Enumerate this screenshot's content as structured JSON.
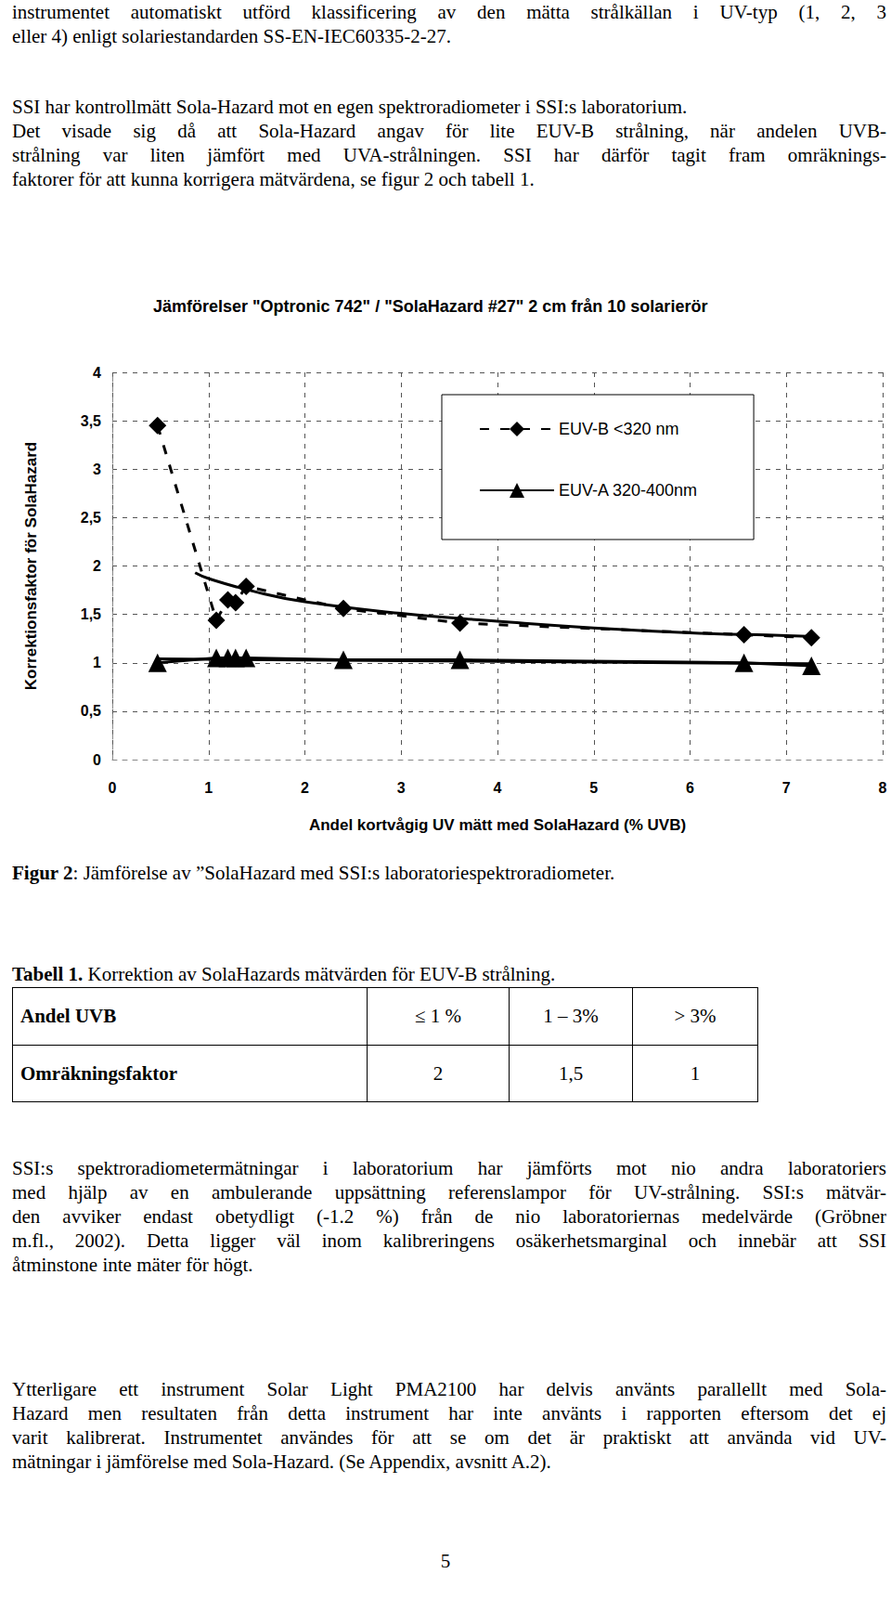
{
  "text_top": [
    [
      "instrumentet automatiskt utförd klassificering av den mätta strålkällan i UV-typ (1, 2, 3",
      "eller 4) enligt solariestandarden SS-EN-IEC60335-2-27."
    ],
    [
      "SSI har kontrollmätt Sola-Hazard mot en egen spektroradiometer i SSI:s laboratorium."
    ],
    [
      "Det visade sig då att Sola-Hazard angav för lite EUV-B strålning, när andelen UVB-",
      "strålning var liten jämfört med UVA-strålningen. SSI har därför tagit fram omräknings-",
      "faktorer för att kunna korrigera mätvärdena, se figur 2 och tabell 1."
    ]
  ],
  "chart_data": {
    "type": "line",
    "title": "Jämförelser \"Optronic 742\" / \"SolaHazard #27\" 2 cm från 10 solarierör",
    "x_label": "Andel kortvågig UV mätt med SolaHazard (% UVB)",
    "y_label": "Korrektionsfaktor för SolaHazard",
    "xlim": [
      0,
      8
    ],
    "xticks": [
      0,
      1,
      2,
      3,
      4,
      5,
      6,
      7,
      8
    ],
    "ylim": [
      0,
      4
    ],
    "yticks": [
      0,
      {
        "value": 0.5,
        "label": "0,5"
      },
      1,
      {
        "value": 1.5,
        "label": "1,5"
      },
      2,
      {
        "value": 2.5,
        "label": "2,5"
      },
      3,
      {
        "value": 3.5,
        "label": "3,5"
      },
      4
    ],
    "grid": true,
    "legend": "upper right",
    "series": [
      {
        "name": "EUV-B <320 nm",
        "color": "#000000",
        "marker": "diamond",
        "line_style": "dashed",
        "x": [
          0.47,
          1.08,
          1.2,
          1.28,
          1.39,
          2.4,
          3.61,
          6.56,
          7.26
        ],
        "values": [
          3.45,
          1.44,
          1.65,
          1.62,
          1.79,
          1.56,
          1.41,
          1.29,
          1.26
        ],
        "trend": {
          "line_style": "solid",
          "x": [
            0.86,
            1,
            1.5,
            2,
            3,
            4,
            5,
            6,
            7,
            7.3
          ],
          "values": [
            1.93,
            1.87,
            1.73,
            1.63,
            1.51,
            1.43,
            1.36,
            1.31,
            1.28,
            1.27
          ]
        }
      },
      {
        "name": "EUV-A 320-400nm",
        "color": "#000000",
        "marker": "triangle",
        "line_style": "solid",
        "x": [
          0.47,
          1.08,
          1.2,
          1.28,
          1.39,
          2.4,
          3.61,
          6.56,
          7.26
        ],
        "values": [
          1.0,
          1.05,
          1.05,
          1.05,
          1.05,
          1.03,
          1.03,
          1.0,
          0.97
        ],
        "trend": {
          "line_style": "solid",
          "x": [
            0.47,
            7.26
          ],
          "values": [
            1.04,
            0.99
          ]
        }
      }
    ]
  },
  "caption": {
    "label": "Figur 2",
    "text": ": Jämförelse av ”SolaHazard med SSI:s laboratoriespektroradiometer."
  },
  "table_title": {
    "label": "Tabell 1.",
    "text": " Korrektion av SolaHazards mätvärden för EUV-B strålning."
  },
  "table": {
    "rows": [
      [
        "Andel UVB",
        "≤ 1 %",
        "1 – 3%",
        "> 3%"
      ],
      [
        "Omräkningsfaktor",
        "2",
        "1,5",
        "1"
      ]
    ]
  },
  "text_bottom": [
    [
      "SSI:s spektroradiometermätningar i laboratorium har jämförts mot nio andra laboratoriers",
      "med hjälp av en ambulerande uppsättning referenslampor för UV-strålning. SSI:s mätvär-",
      "den avviker endast obetydligt (-1.2 %) från de nio laboratoriernas medelvärde (Gröbner",
      "m.fl., 2002). Detta ligger väl inom kalibreringens osäkerhetsmarginal och innebär att SSI",
      "åtminstone inte mäter för högt."
    ],
    [
      "Ytterligare ett instrument Solar Light PMA2100 har delvis använts parallellt med Sola-",
      "Hazard men resultaten från detta instrument har inte använts i rapporten eftersom det ej",
      "varit kalibrerat. Instrumentet användes för att se om det är praktiskt att använda vid UV-",
      "mätningar i jämförelse med Sola-Hazard. (Se Appendix, avsnitt A.2)."
    ]
  ],
  "page_number": "5"
}
